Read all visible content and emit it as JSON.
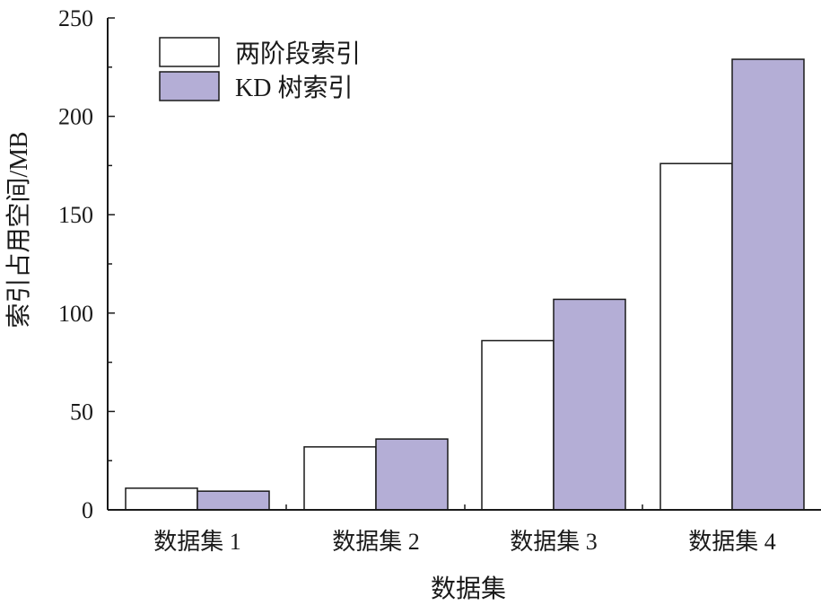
{
  "chart_data": {
    "type": "bar",
    "categories": [
      "数据集 1",
      "数据集 2",
      "数据集 3",
      "数据集 4"
    ],
    "series": [
      {
        "name": "两阶段索引",
        "values": [
          11,
          32,
          86,
          176
        ],
        "color": "#ffffff"
      },
      {
        "name": "KD 树索引",
        "values": [
          9.5,
          36,
          107,
          229
        ],
        "color": "#b4aed6"
      }
    ],
    "xlabel": "数据集",
    "ylabel": "索引占用空间/MB",
    "ylim": [
      0,
      250
    ],
    "yticks": [
      0,
      50,
      100,
      150,
      200,
      250
    ],
    "grid": false,
    "legend": "top-left"
  }
}
